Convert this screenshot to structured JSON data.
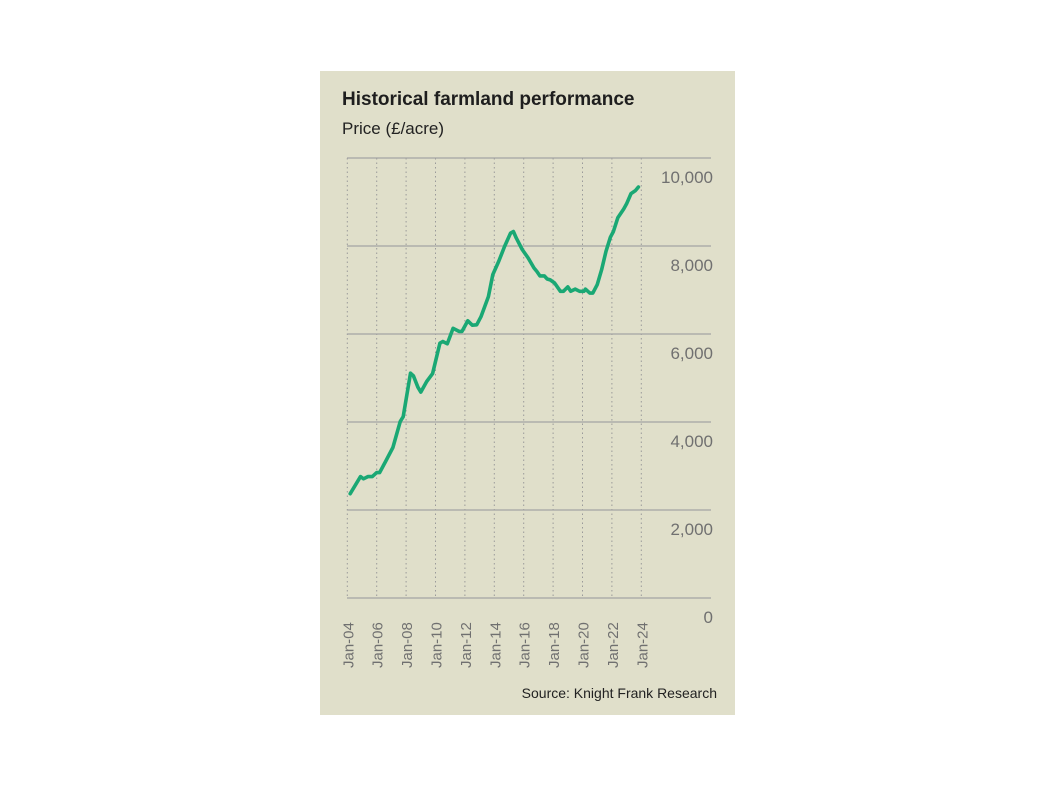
{
  "chart_data": {
    "type": "line",
    "title": "Historical farmland performance",
    "ylabel": "Price (£/acre)",
    "xlabel": "",
    "source": "Source: Knight Frank Research",
    "ylim": [
      0,
      10000
    ],
    "xlim": [
      2004,
      2024
    ],
    "grid": true,
    "y_ticks": [
      0,
      2000,
      4000,
      6000,
      8000,
      10000
    ],
    "y_tick_labels": [
      "0",
      "2,000",
      "4,000",
      "6,000",
      "8,000",
      "10,000"
    ],
    "x_ticks": [
      2004,
      2006,
      2008,
      2010,
      2012,
      2014,
      2016,
      2018,
      2020,
      2022,
      2024
    ],
    "x_tick_labels": [
      "Jan-04",
      "Jan-06",
      "Jan-08",
      "Jan-10",
      "Jan-12",
      "Jan-14",
      "Jan-16",
      "Jan-18",
      "Jan-20",
      "Jan-22",
      "Jan-24"
    ],
    "series": [
      {
        "name": "Price (£/acre)",
        "color": "#1aa874",
        "x": [
          2004.2,
          2004.9,
          2005.1,
          2005.4,
          2005.7,
          2006.0,
          2006.2,
          2006.6,
          2007.1,
          2007.6,
          2007.8,
          2008.3,
          2008.5,
          2008.8,
          2009.0,
          2009.4,
          2009.8,
          2010.3,
          2010.5,
          2010.8,
          2011.2,
          2011.6,
          2011.8,
          2012.2,
          2012.5,
          2012.8,
          2013.1,
          2013.6,
          2013.9,
          2014.3,
          2014.7,
          2015.1,
          2015.3,
          2015.5,
          2015.9,
          2016.3,
          2016.7,
          2016.9,
          2017.1,
          2017.4,
          2017.6,
          2017.8,
          2018.1,
          2018.5,
          2018.7,
          2019.0,
          2019.2,
          2019.5,
          2019.8,
          2020.1,
          2020.2,
          2020.5,
          2020.7,
          2021.0,
          2021.3,
          2021.6,
          2021.9,
          2022.1,
          2022.4,
          2022.8,
          2023.0,
          2023.3,
          2023.6,
          2023.8
        ],
        "values": [
          2370,
          2760,
          2710,
          2760,
          2760,
          2850,
          2850,
          3100,
          3420,
          4010,
          4120,
          5110,
          5050,
          4790,
          4680,
          4920,
          5100,
          5790,
          5830,
          5780,
          6130,
          6060,
          6060,
          6300,
          6200,
          6210,
          6400,
          6850,
          7350,
          7650,
          7990,
          8290,
          8330,
          8180,
          7920,
          7730,
          7500,
          7420,
          7320,
          7320,
          7250,
          7230,
          7160,
          6970,
          6970,
          7070,
          6970,
          7020,
          6970,
          6970,
          7020,
          6930,
          6930,
          7120,
          7460,
          7880,
          8200,
          8330,
          8640,
          8840,
          8960,
          9190,
          9260,
          9340
        ]
      }
    ]
  }
}
